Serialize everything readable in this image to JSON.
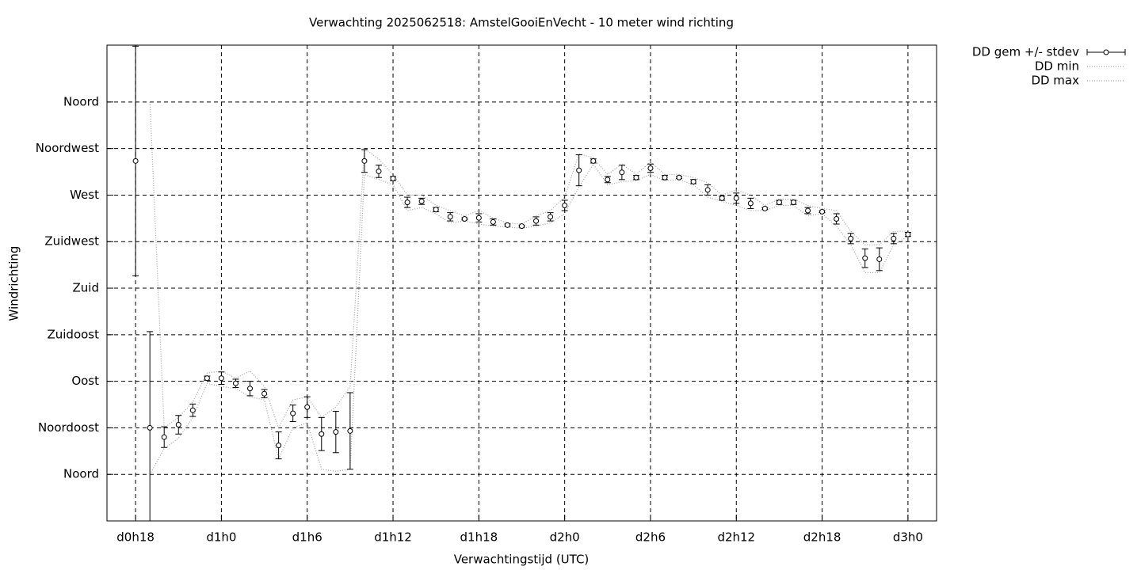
{
  "chart_data": {
    "type": "errorbar",
    "title": "Verwachting 2025062518: AmstelGooiEnVecht - 10 meter wind richting",
    "xlabel": "Verwachtingstijd (UTC)",
    "ylabel": "Windrichting",
    "x": [
      18,
      19,
      20,
      21,
      22,
      23,
      24,
      25,
      26,
      27,
      28,
      29,
      30,
      31,
      32,
      33,
      34,
      35,
      36,
      37,
      38,
      39,
      40,
      41,
      42,
      43,
      44,
      45,
      46,
      47,
      48,
      49,
      50,
      51,
      52,
      53,
      54,
      55,
      56,
      57,
      58,
      59,
      60,
      61,
      62,
      63,
      64,
      65,
      66,
      67,
      68,
      69,
      70,
      71,
      72
    ],
    "series": [
      {
        "name": "DD gem +/- stdev",
        "color": "#000000",
        "values": [
          303,
          45,
          36,
          48,
          62,
          93,
          93,
          88,
          83,
          78,
          28,
          59,
          65,
          39,
          41,
          42,
          303,
          293,
          286,
          263,
          264,
          256,
          249,
          247,
          248,
          244,
          241,
          240,
          245,
          249,
          260,
          294,
          303,
          285,
          292,
          287,
          296,
          287,
          287,
          283,
          275,
          267,
          267,
          262,
          257,
          263,
          263,
          255,
          254,
          247,
          228,
          209,
          208,
          228,
          232
        ],
        "errors": [
          111,
          93,
          10,
          9,
          6,
          2,
          6,
          4,
          7,
          4,
          13,
          8,
          10,
          16,
          20,
          37,
          11,
          6,
          2,
          5,
          3,
          2,
          4,
          1,
          4,
          3,
          1,
          1,
          4,
          4,
          5,
          15,
          2,
          3,
          7,
          2,
          4,
          2,
          1,
          2,
          5,
          2,
          5,
          5,
          1,
          2,
          2,
          3,
          1,
          5,
          5,
          9,
          11,
          5,
          2
        ]
      },
      {
        "name": "DD min",
        "color": "#a0a0a0",
        "values": [
          null,
          0,
          25,
          35,
          55,
          88,
          85,
          83,
          75,
          72,
          15,
          45,
          50,
          5,
          3,
          5,
          290,
          285,
          280,
          255,
          258,
          252,
          243,
          245,
          242,
          240,
          239,
          238,
          240,
          243,
          252,
          278,
          300,
          280,
          283,
          284,
          290,
          284,
          285,
          280,
          268,
          264,
          260,
          255,
          255,
          260,
          260,
          250,
          252,
          240,
          222,
          195,
          195,
          222,
          230
        ]
      },
      {
        "name": "DD max",
        "color": "#a0a0a0",
        "values": [
          null,
          360,
          45,
          55,
          70,
          98,
          100,
          93,
          100,
          85,
          45,
          72,
          75,
          55,
          65,
          85,
          315,
          305,
          290,
          270,
          270,
          260,
          255,
          250,
          255,
          248,
          243,
          242,
          250,
          255,
          268,
          310,
          306,
          290,
          300,
          290,
          302,
          290,
          290,
          287,
          282,
          270,
          275,
          270,
          260,
          266,
          266,
          260,
          257,
          255,
          235,
          222,
          222,
          235,
          235
        ]
      }
    ],
    "xlim": [
      16,
      74
    ],
    "xticks": [
      {
        "value": 18,
        "label": "d0h18"
      },
      {
        "value": 24,
        "label": "d1h0"
      },
      {
        "value": 30,
        "label": "d1h6"
      },
      {
        "value": 36,
        "label": "d1h12"
      },
      {
        "value": 42,
        "label": "d1h18"
      },
      {
        "value": 48,
        "label": "d2h0"
      },
      {
        "value": 54,
        "label": "d2h6"
      },
      {
        "value": 60,
        "label": "d2h12"
      },
      {
        "value": 66,
        "label": "d2h18"
      },
      {
        "value": 72,
        "label": "d3h0"
      }
    ],
    "ylim": [
      -45,
      415
    ],
    "yticks": [
      {
        "value": 0,
        "label": "Noord"
      },
      {
        "value": 45,
        "label": "Noordoost"
      },
      {
        "value": 90,
        "label": "Oost"
      },
      {
        "value": 135,
        "label": "Zuidoost"
      },
      {
        "value": 180,
        "label": "Zuid"
      },
      {
        "value": 225,
        "label": "Zuidwest"
      },
      {
        "value": 270,
        "label": "West"
      },
      {
        "value": 315,
        "label": "Noordwest"
      },
      {
        "value": 360,
        "label": "Noord"
      }
    ],
    "grid": true,
    "legend": "outside-top-right"
  }
}
